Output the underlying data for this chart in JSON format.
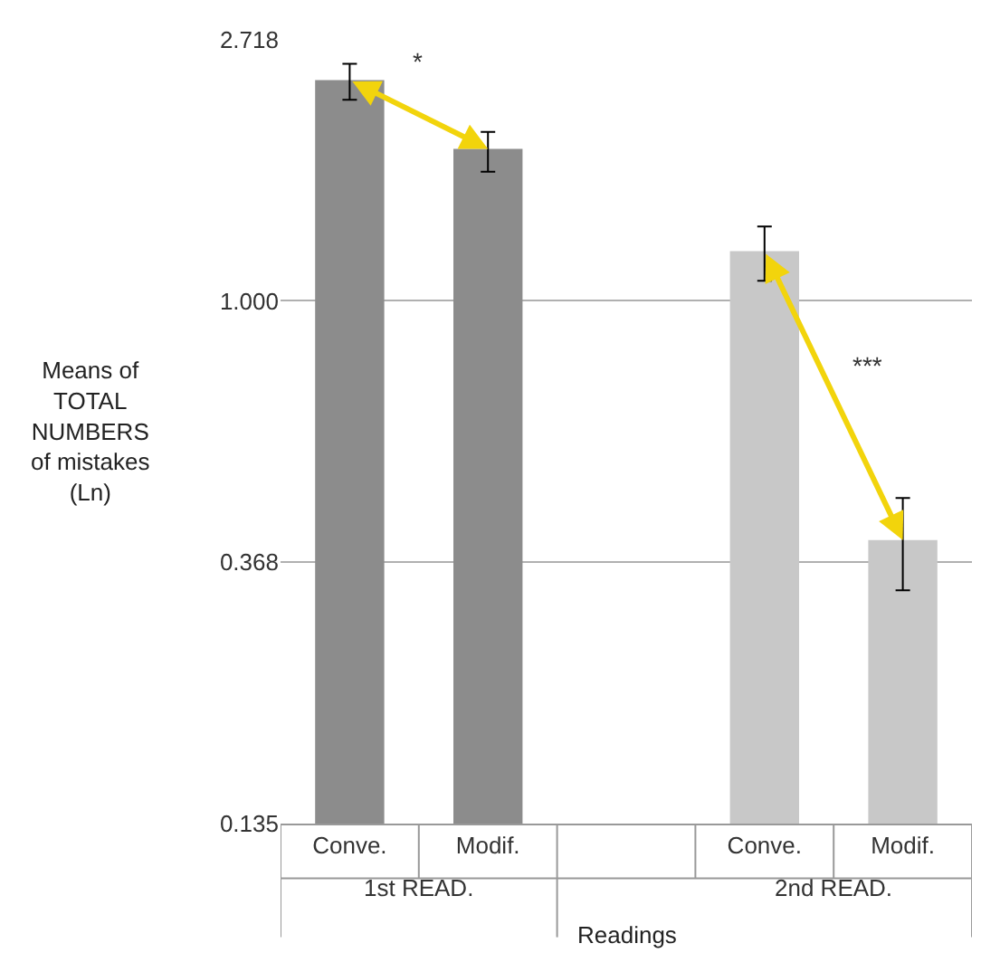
{
  "chart_data": {
    "type": "bar",
    "categories": [
      "Conve.",
      "Modif.",
      null,
      "Conve.",
      "Modif."
    ],
    "values": [
      2.33,
      1.79,
      null,
      1.21,
      0.4
    ],
    "colors": [
      "#8c8c8c",
      "#8c8c8c",
      "#8c8c8c",
      "#c8c8c8",
      "#c8c8c8"
    ],
    "errors": [
      [
        2.16,
        2.48
      ],
      [
        1.64,
        1.91
      ],
      null,
      [
        1.08,
        1.33
      ],
      [
        0.33,
        0.47
      ]
    ],
    "ylabel": "Means of\nTOTAL\nNUMBERS\nof mistakes\n(Ln)",
    "xlabel": "Readings",
    "annotations": [
      "1st READ.",
      "2nd READ.",
      "*",
      "***"
    ],
    "log": "y",
    "ylim": [
      0.135,
      2.718
    ],
    "yticks": [
      0.135,
      0.368,
      {
        "value": 1,
        "label": "1.000"
      },
      2.718
    ],
    "grid": "y"
  }
}
